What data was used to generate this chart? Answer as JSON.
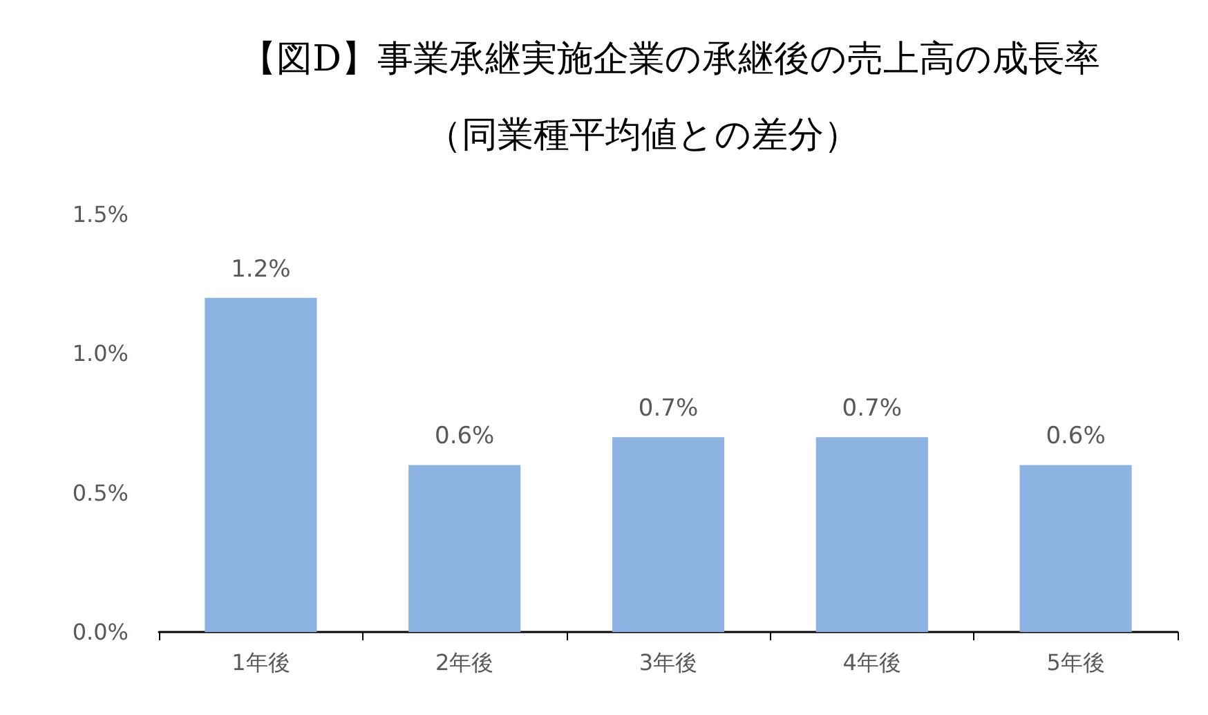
{
  "chart_data": {
    "type": "bar",
    "title": "【図D】事業承継実施企業の承継後の売上高の成長率",
    "subtitle": "（同業種平均値との差分）",
    "categories": [
      "1年後",
      "2年後",
      "3年後",
      "4年後",
      "5年後"
    ],
    "values": [
      1.2,
      0.6,
      0.7,
      0.7,
      0.6
    ],
    "value_labels": [
      "1.2%",
      "0.6%",
      "0.7%",
      "0.7%",
      "0.6%"
    ],
    "color": "#8db3e2",
    "ylim": [
      0,
      1.5
    ],
    "yticks": [
      {
        "value": 0,
        "label": "0.0%"
      },
      {
        "value": 0.5,
        "label": "0.5%"
      },
      {
        "value": 1,
        "label": "1.0%"
      },
      {
        "value": 1.5,
        "label": "1.5%"
      }
    ],
    "grid": false
  }
}
